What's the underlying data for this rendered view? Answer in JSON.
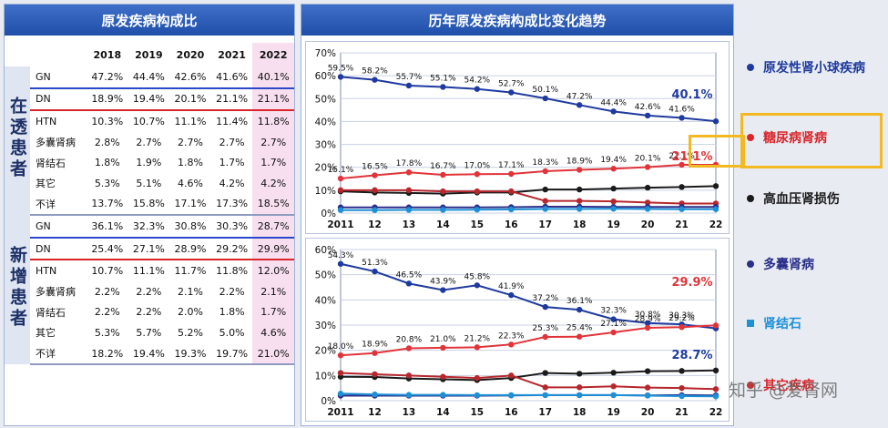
{
  "left_panel": {
    "title": "原发疾病构成比",
    "years": [
      "2018",
      "2019",
      "2020",
      "2021",
      "2022"
    ],
    "dialysis_label": "在透患者",
    "new_label": "新增患者",
    "dialysis_rows": [
      {
        "label": "GN",
        "values": [
          "47.2%",
          "44.4%",
          "42.6%",
          "41.6%",
          "40.1%"
        ]
      },
      {
        "label": "DN",
        "values": [
          "18.9%",
          "19.4%",
          "20.1%",
          "21.1%",
          "21.1%"
        ]
      },
      {
        "label": "HTN",
        "values": [
          "10.3%",
          "10.7%",
          "11.1%",
          "11.4%",
          "11.8%"
        ]
      },
      {
        "label": "多囊肾病",
        "values": [
          "2.8%",
          "2.7%",
          "2.7%",
          "2.7%",
          "2.7%"
        ]
      },
      {
        "label": "肾结石",
        "values": [
          "1.8%",
          "1.9%",
          "1.8%",
          "1.7%",
          "1.7%"
        ]
      },
      {
        "label": "其它",
        "values": [
          "5.3%",
          "5.1%",
          "4.6%",
          "4.2%",
          "4.2%"
        ]
      },
      {
        "label": "不详",
        "values": [
          "13.7%",
          "15.8%",
          "17.1%",
          "17.3%",
          "18.5%"
        ]
      }
    ],
    "new_rows": [
      {
        "label": "GN",
        "values": [
          "36.1%",
          "32.3%",
          "30.8%",
          "30.3%",
          "28.7%"
        ]
      },
      {
        "label": "DN",
        "values": [
          "25.4%",
          "27.1%",
          "28.9%",
          "29.2%",
          "29.9%"
        ]
      },
      {
        "label": "HTN",
        "values": [
          "10.7%",
          "11.1%",
          "11.7%",
          "11.8%",
          "12.0%"
        ]
      },
      {
        "label": "多囊肾病",
        "values": [
          "2.2%",
          "2.2%",
          "2.1%",
          "2.2%",
          "2.1%"
        ]
      },
      {
        "label": "肾结石",
        "values": [
          "2.2%",
          "2.2%",
          "2.0%",
          "1.8%",
          "1.7%"
        ]
      },
      {
        "label": "其它",
        "values": [
          "5.3%",
          "5.7%",
          "5.2%",
          "5.0%",
          "4.6%"
        ]
      },
      {
        "label": "不详",
        "values": [
          "18.2%",
          "19.4%",
          "19.3%",
          "19.7%",
          "21.0%"
        ]
      }
    ]
  },
  "right_panel": {
    "title": "历年原发疾病构成比变化趋势"
  },
  "legend": {
    "items": [
      {
        "label": "原发性肾小球疾病",
        "color": "#1f3a9e",
        "shape": "dot"
      },
      {
        "label": "糖尿病肾病",
        "color": "#d8262b",
        "shape": "dot"
      },
      {
        "label": "高血压肾损伤",
        "color": "#1a1a1a",
        "shape": "dot"
      },
      {
        "label": "多囊肾病",
        "color": "#2b2f8a",
        "shape": "dot"
      },
      {
        "label": "肾结石",
        "color": "#1e90d6",
        "shape": "square"
      },
      {
        "label": "其它疾病",
        "color": "#d8262b",
        "shape": "dot"
      }
    ]
  },
  "watermark": "知乎 @爱肾网",
  "chart_data": [
    {
      "type": "line",
      "x": [
        "2011",
        "12",
        "13",
        "14",
        "15",
        "16",
        "17",
        "18",
        "19",
        "20",
        "21",
        "22"
      ],
      "ylim": [
        0,
        70
      ],
      "yticks": [
        "0%",
        "10%",
        "20%",
        "30%",
        "40%",
        "50%",
        "60%",
        "70%"
      ],
      "grid": true,
      "series": [
        {
          "color": "#1f3a9e",
          "values": [
            59.5,
            58.2,
            55.7,
            55.1,
            54.2,
            52.7,
            50.1,
            47.2,
            44.4,
            42.6,
            41.6,
            40.1
          ],
          "labels": [
            "59.5%",
            "58.2%",
            "55.7%",
            "55.1%",
            "54.2%",
            "52.7%",
            "50.1%",
            "47.2%",
            "44.4%",
            "42.6%",
            "41.6%",
            "40.1%"
          ]
        },
        {
          "color": "#e0343a",
          "values": [
            15.1,
            16.5,
            17.8,
            16.7,
            17.0,
            17.1,
            18.3,
            18.9,
            19.4,
            20.1,
            21.1,
            21.1
          ],
          "labels": [
            "15.1%",
            "16.5%",
            "17.8%",
            "16.7%",
            "17.0%",
            "17.1%",
            "18.3%",
            "18.9%",
            "19.4%",
            "20.1%",
            "21.1%",
            "21.1%"
          ]
        },
        {
          "color": "#1a1a1a",
          "values": [
            9.5,
            9.0,
            8.8,
            8.5,
            9.0,
            9.0,
            10.3,
            10.3,
            10.7,
            11.1,
            11.4,
            11.8
          ]
        },
        {
          "color": "#b5272c",
          "values": [
            10.0,
            10.0,
            10.0,
            9.5,
            9.5,
            9.5,
            5.3,
            5.3,
            5.1,
            4.6,
            4.2,
            4.2
          ]
        },
        {
          "color": "#2b2f8a",
          "values": [
            2.5,
            2.5,
            2.5,
            2.5,
            2.5,
            2.6,
            2.8,
            2.8,
            2.7,
            2.7,
            2.7,
            2.7
          ]
        },
        {
          "color": "#1e90d6",
          "values": [
            1.3,
            1.3,
            1.4,
            1.4,
            1.5,
            1.6,
            1.8,
            1.8,
            1.9,
            1.8,
            1.7,
            1.7
          ]
        }
      ]
    },
    {
      "type": "line",
      "x": [
        "2011",
        "12",
        "13",
        "14",
        "15",
        "16",
        "17",
        "18",
        "19",
        "20",
        "21",
        "22"
      ],
      "ylim": [
        0,
        60
      ],
      "yticks": [
        "0%",
        "10%",
        "20%",
        "30%",
        "40%",
        "50%",
        "60%"
      ],
      "grid": true,
      "series": [
        {
          "color": "#1f3a9e",
          "values": [
            54.3,
            51.3,
            46.5,
            43.9,
            45.8,
            41.9,
            37.2,
            36.1,
            32.3,
            30.8,
            30.3,
            28.7
          ],
          "labels": [
            "54.3%",
            "51.3%",
            "46.5%",
            "43.9%",
            "45.8%",
            "41.9%",
            "37.2%",
            "36.1%",
            "32.3%",
            "30.8%",
            "30.3%",
            "28.7%"
          ]
        },
        {
          "color": "#e0343a",
          "values": [
            18.0,
            18.9,
            20.8,
            21.0,
            21.2,
            22.3,
            25.3,
            25.4,
            27.1,
            28.9,
            29.2,
            29.9
          ],
          "labels": [
            "18.0%",
            "18.9%",
            "20.8%",
            "21.0%",
            "21.2%",
            "22.3%",
            "25.3%",
            "25.4%",
            "27.1%",
            "28.9%",
            "29.2%",
            "29.9%"
          ]
        },
        {
          "color": "#1a1a1a",
          "values": [
            9.5,
            9.4,
            8.8,
            8.5,
            8.2,
            9.0,
            11.0,
            10.7,
            11.1,
            11.7,
            11.8,
            12.0
          ]
        },
        {
          "color": "#b5272c",
          "values": [
            11.0,
            10.5,
            10.0,
            9.5,
            9.0,
            10.0,
            5.3,
            5.3,
            5.7,
            5.2,
            5.0,
            4.6
          ]
        },
        {
          "color": "#2b2f8a",
          "values": [
            2.0,
            2.0,
            2.0,
            2.0,
            2.0,
            2.1,
            2.2,
            2.2,
            2.2,
            2.1,
            2.2,
            2.1
          ]
        },
        {
          "color": "#1e90d6",
          "values": [
            2.8,
            2.5,
            2.3,
            2.3,
            2.2,
            2.2,
            2.2,
            2.2,
            2.2,
            2.0,
            1.8,
            1.7
          ]
        }
      ],
      "end_labels": [
        {
          "text": "29.9%",
          "color": "#e0343a"
        },
        {
          "text": "28.7%",
          "color": "#1f3a9e"
        }
      ]
    }
  ],
  "chart_end_labels_top": [
    {
      "text": "40.1%",
      "color": "#1f3a9e"
    },
    {
      "text": "21.1%",
      "color": "#e0343a"
    }
  ]
}
